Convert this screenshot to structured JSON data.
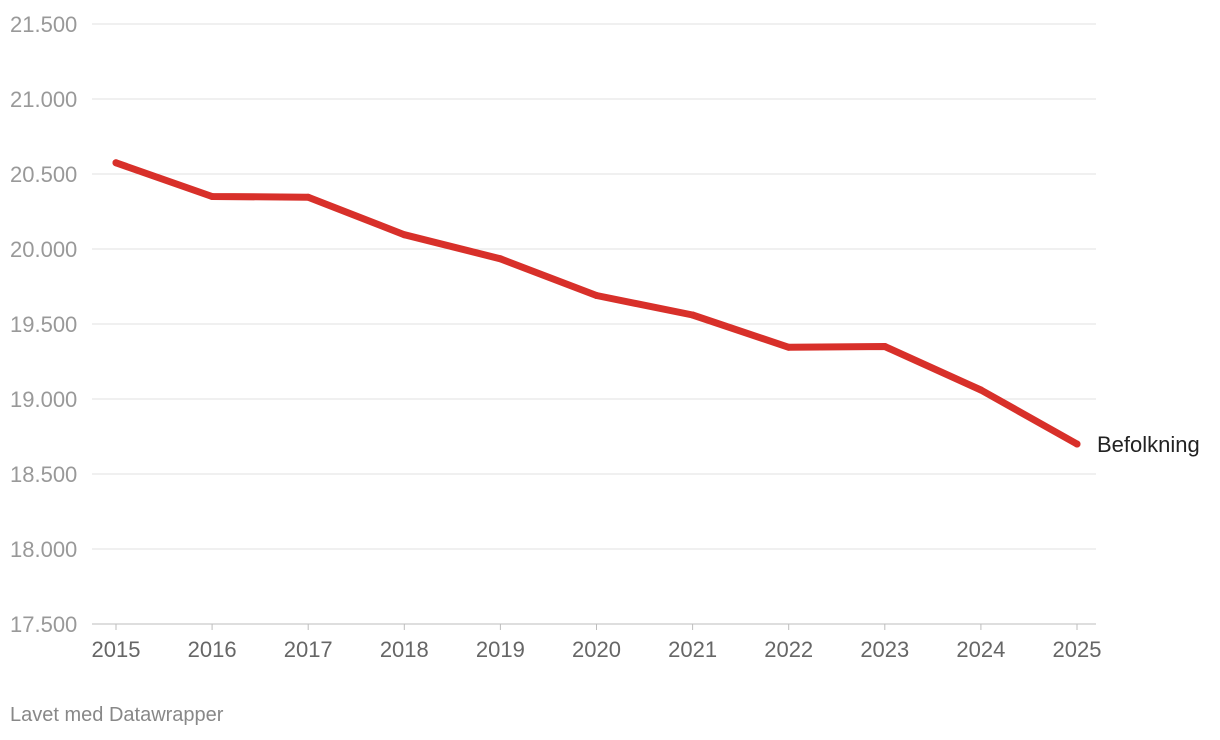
{
  "chart_data": {
    "type": "line",
    "title": "",
    "xlabel": "",
    "ylabel": "",
    "x": [
      "2015",
      "2016",
      "2017",
      "2018",
      "2019",
      "2020",
      "2021",
      "2022",
      "2023",
      "2024",
      "2025"
    ],
    "series": [
      {
        "name": "Befolkning",
        "color": "#d8302a",
        "values": [
          20575,
          20350,
          20345,
          20095,
          19935,
          19690,
          19560,
          19345,
          19350,
          19060,
          18700
        ]
      }
    ],
    "ylim": [
      17500,
      21500
    ],
    "yticks": [
      21500,
      21000,
      20500,
      20000,
      19500,
      19000,
      18500,
      18000,
      17500
    ],
    "ytick_labels": [
      "21.500",
      "21.000",
      "20.500",
      "20.000",
      "19.500",
      "19.000",
      "18.500",
      "18.000",
      "17.500"
    ],
    "grid": true,
    "legend": "direct-label-right"
  },
  "footer": {
    "credit": "Lavet med Datawrapper"
  }
}
